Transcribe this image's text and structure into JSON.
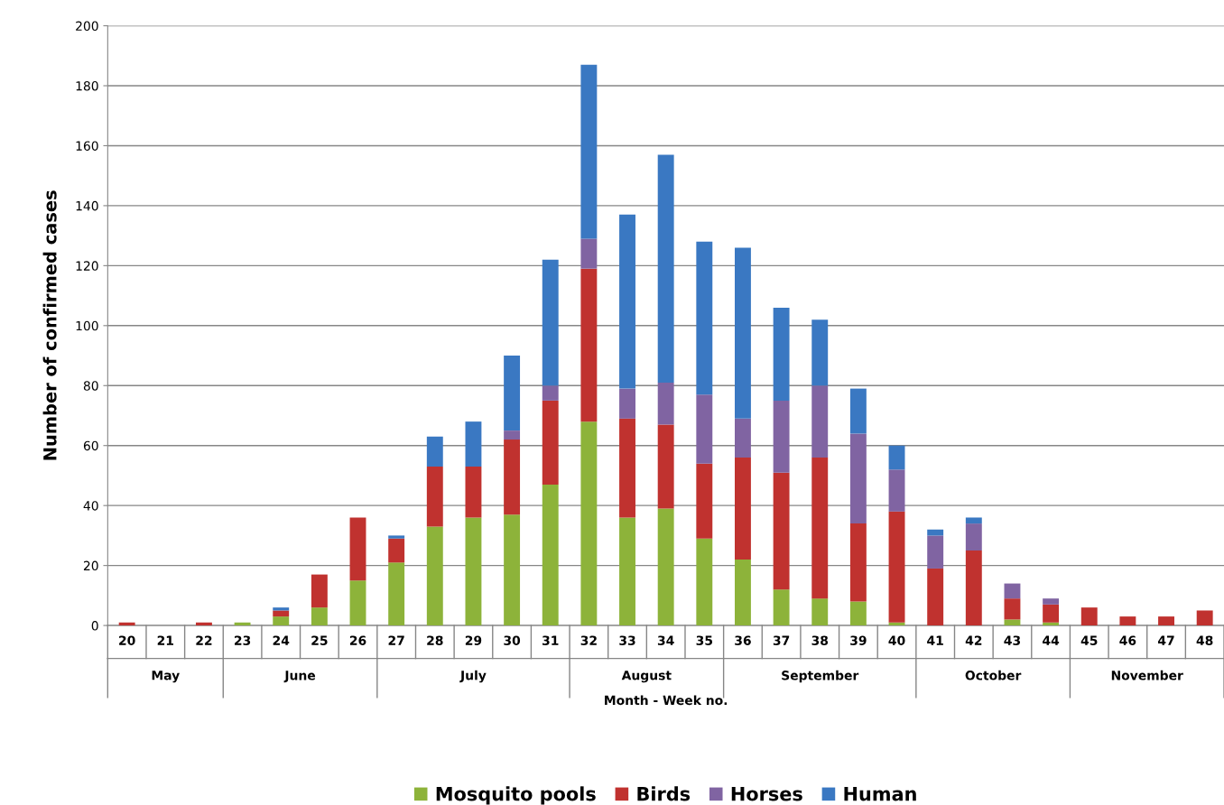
{
  "chart_data": {
    "type": "bar",
    "stacked": true,
    "xlabel": "Month - Week no.",
    "ylabel": "Number of confirmed cases",
    "categories": [
      "20",
      "21",
      "22",
      "23",
      "24",
      "25",
      "26",
      "27",
      "28",
      "29",
      "30",
      "31",
      "32",
      "33",
      "34",
      "35",
      "36",
      "37",
      "38",
      "39",
      "40",
      "41",
      "42",
      "43",
      "44",
      "45",
      "46",
      "47",
      "48"
    ],
    "series": [
      {
        "name": "Mosquito pools",
        "color": "#8db33a",
        "values": [
          0,
          0,
          0,
          1,
          3,
          6,
          15,
          21,
          33,
          36,
          37,
          47,
          68,
          36,
          39,
          29,
          22,
          12,
          9,
          8,
          1,
          0,
          0,
          2,
          1,
          0,
          0,
          0,
          0
        ]
      },
      {
        "name": "Birds",
        "color": "#c0322f",
        "values": [
          1,
          0,
          1,
          0,
          2,
          11,
          21,
          8,
          20,
          17,
          25,
          28,
          51,
          33,
          28,
          25,
          34,
          39,
          47,
          26,
          37,
          19,
          25,
          7,
          6,
          6,
          3,
          3,
          5
        ]
      },
      {
        "name": "Horses",
        "color": "#8064a2",
        "values": [
          0,
          0,
          0,
          0,
          0,
          0,
          0,
          0,
          0,
          0,
          3,
          5,
          10,
          10,
          14,
          23,
          13,
          24,
          24,
          30,
          14,
          11,
          9,
          5,
          2,
          0,
          0,
          0,
          0
        ]
      },
      {
        "name": "Human",
        "color": "#3a78c2",
        "values": [
          0,
          0,
          0,
          0,
          1,
          0,
          0,
          1,
          10,
          15,
          25,
          42,
          58,
          58,
          76,
          51,
          57,
          31,
          22,
          15,
          8,
          2,
          2,
          0,
          0,
          0,
          0,
          0,
          0
        ]
      }
    ],
    "annotations": [
      "May",
      "June",
      "July",
      "August",
      "September",
      "October",
      "November"
    ],
    "ylim": [
      0,
      200
    ],
    "yticks": [
      0,
      20,
      40,
      60,
      80,
      100,
      120,
      140,
      160,
      180,
      200
    ],
    "grid": "y",
    "legend": "bottom"
  }
}
